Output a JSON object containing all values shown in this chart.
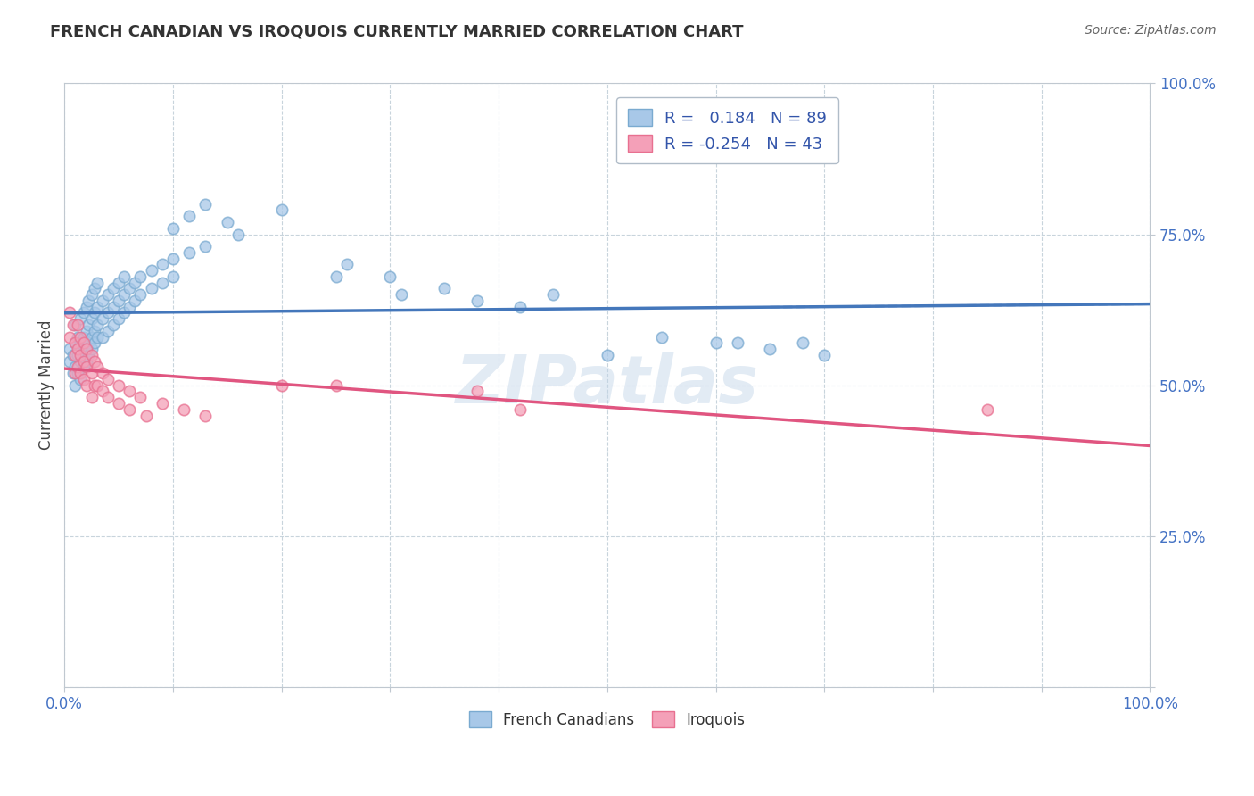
{
  "title": "FRENCH CANADIAN VS IROQUOIS CURRENTLY MARRIED CORRELATION CHART",
  "source": "Source: ZipAtlas.com",
  "ylabel": "Currently Married",
  "xlabel": "",
  "watermark": "ZIPatlas",
  "xlim": [
    0.0,
    1.0
  ],
  "ylim": [
    0.0,
    1.0
  ],
  "french_R": 0.184,
  "french_N": 89,
  "iroquois_R": -0.254,
  "iroquois_N": 43,
  "french_color": "#a8c8e8",
  "iroquois_color": "#f4a0b8",
  "french_edge_color": "#7aaad0",
  "iroquois_edge_color": "#e87090",
  "french_line_color": "#4477bb",
  "iroquois_line_color": "#e05580",
  "french_scatter": [
    [
      0.005,
      0.54
    ],
    [
      0.005,
      0.56
    ],
    [
      0.008,
      0.52
    ],
    [
      0.008,
      0.55
    ],
    [
      0.01,
      0.53
    ],
    [
      0.01,
      0.57
    ],
    [
      0.01,
      0.6
    ],
    [
      0.01,
      0.5
    ],
    [
      0.012,
      0.55
    ],
    [
      0.012,
      0.58
    ],
    [
      0.012,
      0.52
    ],
    [
      0.013,
      0.56
    ],
    [
      0.015,
      0.54
    ],
    [
      0.015,
      0.57
    ],
    [
      0.015,
      0.61
    ],
    [
      0.015,
      0.51
    ],
    [
      0.018,
      0.55
    ],
    [
      0.018,
      0.58
    ],
    [
      0.018,
      0.62
    ],
    [
      0.018,
      0.53
    ],
    [
      0.02,
      0.56
    ],
    [
      0.02,
      0.59
    ],
    [
      0.02,
      0.63
    ],
    [
      0.02,
      0.54
    ],
    [
      0.022,
      0.57
    ],
    [
      0.022,
      0.6
    ],
    [
      0.022,
      0.64
    ],
    [
      0.022,
      0.55
    ],
    [
      0.025,
      0.58
    ],
    [
      0.025,
      0.61
    ],
    [
      0.025,
      0.65
    ],
    [
      0.025,
      0.56
    ],
    [
      0.028,
      0.59
    ],
    [
      0.028,
      0.62
    ],
    [
      0.028,
      0.66
    ],
    [
      0.028,
      0.57
    ],
    [
      0.03,
      0.6
    ],
    [
      0.03,
      0.63
    ],
    [
      0.03,
      0.67
    ],
    [
      0.03,
      0.58
    ],
    [
      0.035,
      0.61
    ],
    [
      0.035,
      0.64
    ],
    [
      0.035,
      0.58
    ],
    [
      0.04,
      0.62
    ],
    [
      0.04,
      0.65
    ],
    [
      0.04,
      0.59
    ],
    [
      0.045,
      0.63
    ],
    [
      0.045,
      0.66
    ],
    [
      0.045,
      0.6
    ],
    [
      0.05,
      0.64
    ],
    [
      0.05,
      0.67
    ],
    [
      0.05,
      0.61
    ],
    [
      0.055,
      0.65
    ],
    [
      0.055,
      0.68
    ],
    [
      0.055,
      0.62
    ],
    [
      0.06,
      0.66
    ],
    [
      0.06,
      0.63
    ],
    [
      0.065,
      0.67
    ],
    [
      0.065,
      0.64
    ],
    [
      0.07,
      0.68
    ],
    [
      0.07,
      0.65
    ],
    [
      0.08,
      0.69
    ],
    [
      0.08,
      0.66
    ],
    [
      0.09,
      0.7
    ],
    [
      0.09,
      0.67
    ],
    [
      0.1,
      0.71
    ],
    [
      0.1,
      0.68
    ],
    [
      0.1,
      0.76
    ],
    [
      0.115,
      0.72
    ],
    [
      0.115,
      0.78
    ],
    [
      0.13,
      0.73
    ],
    [
      0.13,
      0.8
    ],
    [
      0.15,
      0.77
    ],
    [
      0.16,
      0.75
    ],
    [
      0.2,
      0.79
    ],
    [
      0.25,
      0.68
    ],
    [
      0.26,
      0.7
    ],
    [
      0.3,
      0.68
    ],
    [
      0.31,
      0.65
    ],
    [
      0.35,
      0.66
    ],
    [
      0.38,
      0.64
    ],
    [
      0.42,
      0.63
    ],
    [
      0.45,
      0.65
    ],
    [
      0.5,
      0.55
    ],
    [
      0.55,
      0.58
    ],
    [
      0.6,
      0.57
    ],
    [
      0.62,
      0.57
    ],
    [
      0.65,
      0.56
    ],
    [
      0.68,
      0.57
    ],
    [
      0.7,
      0.55
    ]
  ],
  "iroquois_scatter": [
    [
      0.005,
      0.62
    ],
    [
      0.005,
      0.58
    ],
    [
      0.008,
      0.6
    ],
    [
      0.01,
      0.57
    ],
    [
      0.01,
      0.55
    ],
    [
      0.01,
      0.52
    ],
    [
      0.012,
      0.6
    ],
    [
      0.012,
      0.56
    ],
    [
      0.012,
      0.53
    ],
    [
      0.015,
      0.58
    ],
    [
      0.015,
      0.55
    ],
    [
      0.015,
      0.52
    ],
    [
      0.018,
      0.57
    ],
    [
      0.018,
      0.54
    ],
    [
      0.018,
      0.51
    ],
    [
      0.02,
      0.56
    ],
    [
      0.02,
      0.53
    ],
    [
      0.02,
      0.5
    ],
    [
      0.025,
      0.55
    ],
    [
      0.025,
      0.52
    ],
    [
      0.025,
      0.48
    ],
    [
      0.028,
      0.54
    ],
    [
      0.028,
      0.5
    ],
    [
      0.03,
      0.53
    ],
    [
      0.03,
      0.5
    ],
    [
      0.035,
      0.52
    ],
    [
      0.035,
      0.49
    ],
    [
      0.04,
      0.51
    ],
    [
      0.04,
      0.48
    ],
    [
      0.05,
      0.5
    ],
    [
      0.05,
      0.47
    ],
    [
      0.06,
      0.49
    ],
    [
      0.06,
      0.46
    ],
    [
      0.07,
      0.48
    ],
    [
      0.075,
      0.45
    ],
    [
      0.09,
      0.47
    ],
    [
      0.11,
      0.46
    ],
    [
      0.13,
      0.45
    ],
    [
      0.2,
      0.5
    ],
    [
      0.25,
      0.5
    ],
    [
      0.38,
      0.49
    ],
    [
      0.42,
      0.46
    ],
    [
      0.85,
      0.46
    ]
  ],
  "background_color": "#ffffff",
  "grid_color": "#c8d4dc",
  "spine_color": "#c0c8d0"
}
